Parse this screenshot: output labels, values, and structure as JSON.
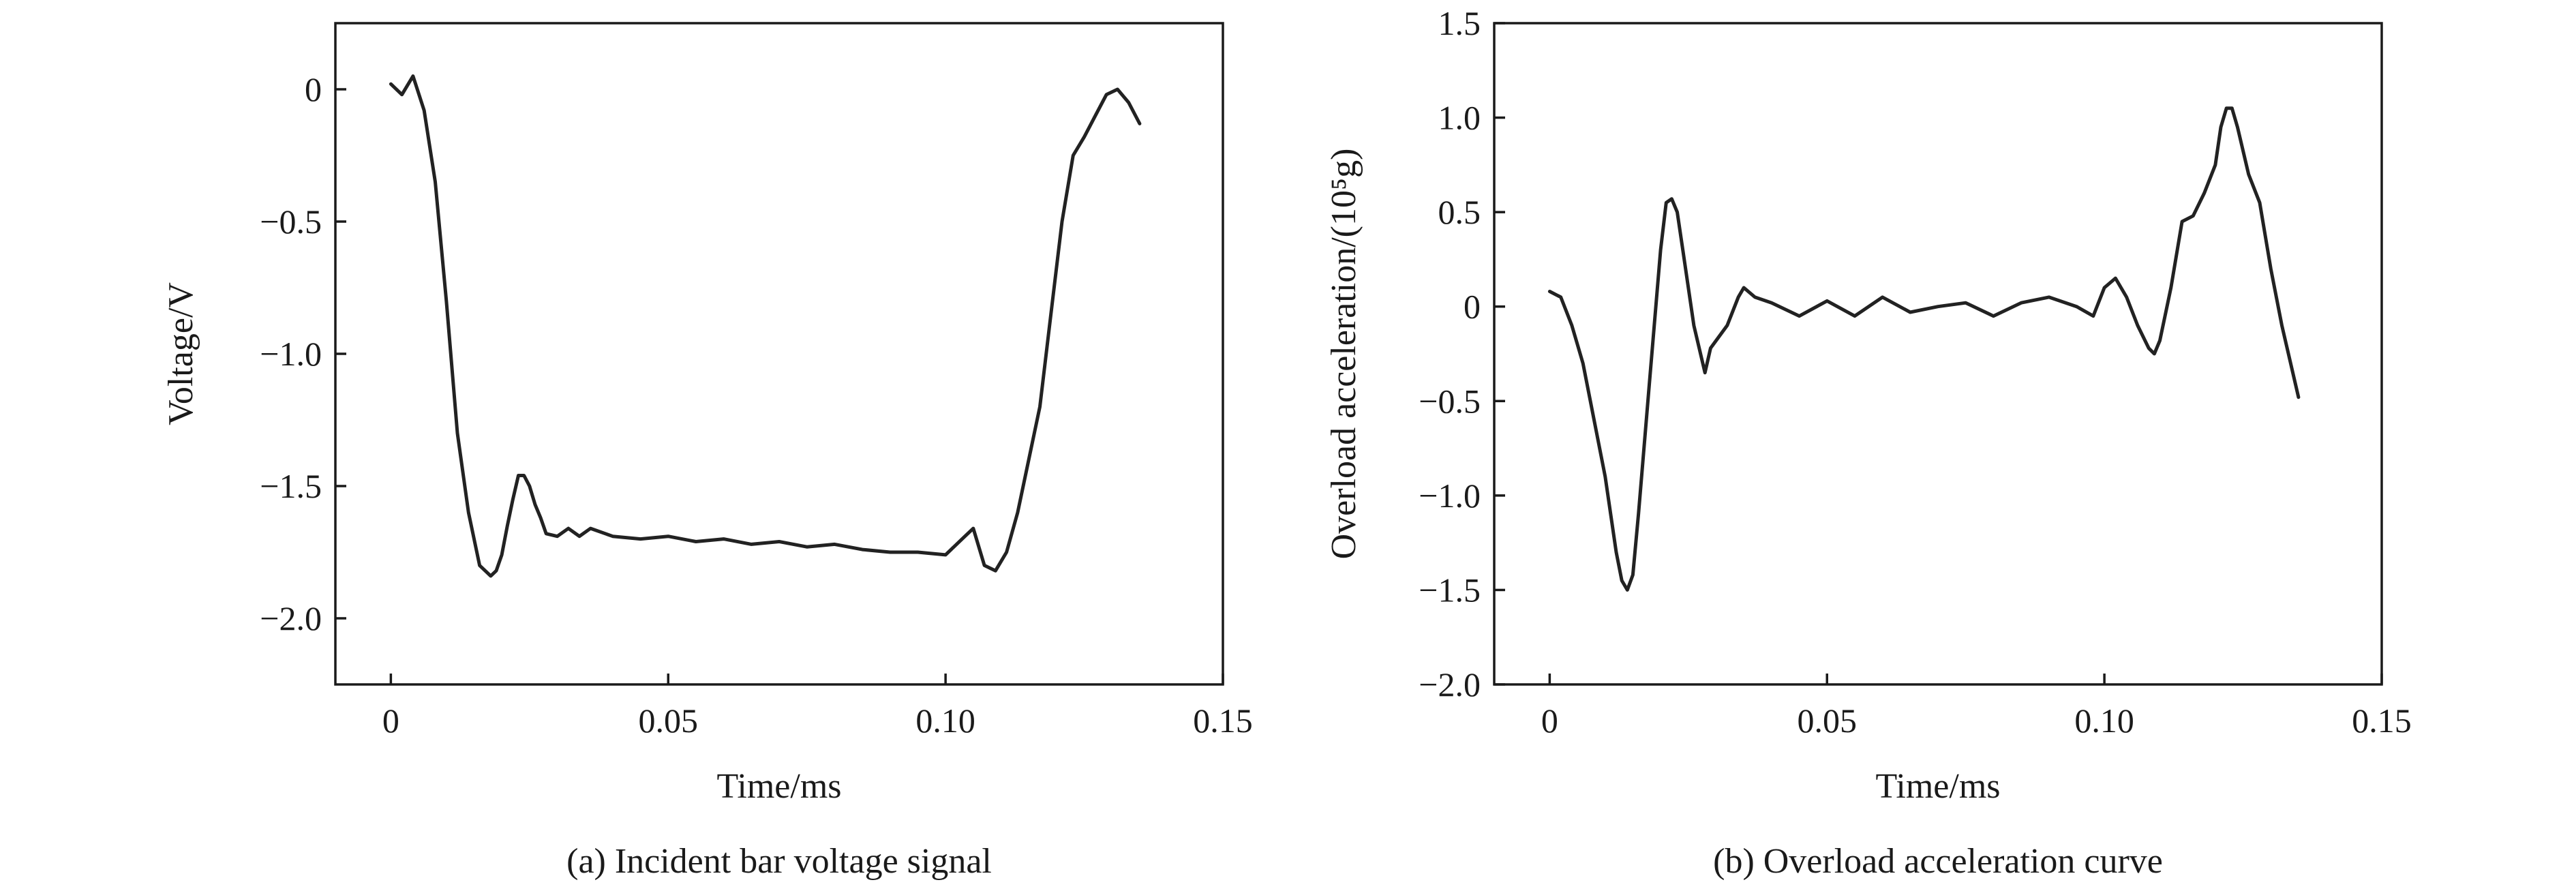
{
  "chart_data": [
    {
      "type": "line",
      "caption": "(a) Incident bar voltage signal",
      "xlabel": "Time/ms",
      "ylabel": "Voltage/V",
      "xlim": [
        -0.01,
        0.15
      ],
      "ylim": [
        -2.25,
        0.25
      ],
      "xticks": [
        0,
        0.05,
        0.1,
        0.15
      ],
      "xtick_labels": [
        "0",
        "0.05",
        "0.10",
        "0.15"
      ],
      "yticks": [
        0,
        -0.5,
        -1.0,
        -1.5,
        -2.0
      ],
      "ytick_labels": [
        "0",
        "−0.5",
        "−1.0",
        "−1.5",
        "−2.0"
      ],
      "grid": false,
      "x": [
        0,
        0.002,
        0.004,
        0.006,
        0.008,
        0.01,
        0.012,
        0.014,
        0.016,
        0.018,
        0.019,
        0.02,
        0.021,
        0.022,
        0.023,
        0.024,
        0.025,
        0.026,
        0.027,
        0.028,
        0.03,
        0.032,
        0.034,
        0.036,
        0.04,
        0.045,
        0.05,
        0.055,
        0.06,
        0.065,
        0.07,
        0.075,
        0.08,
        0.085,
        0.09,
        0.095,
        0.1,
        0.103,
        0.105,
        0.107,
        0.109,
        0.111,
        0.113,
        0.115,
        0.117,
        0.119,
        0.121,
        0.123,
        0.125,
        0.127,
        0.129,
        0.131,
        0.133,
        0.135
      ],
      "y": [
        0.02,
        -0.02,
        0.05,
        -0.08,
        -0.35,
        -0.8,
        -1.3,
        -1.6,
        -1.8,
        -1.84,
        -1.82,
        -1.76,
        -1.65,
        -1.55,
        -1.46,
        -1.46,
        -1.5,
        -1.57,
        -1.62,
        -1.68,
        -1.69,
        -1.66,
        -1.69,
        -1.66,
        -1.69,
        -1.7,
        -1.69,
        -1.71,
        -1.7,
        -1.72,
        -1.71,
        -1.73,
        -1.72,
        -1.74,
        -1.75,
        -1.75,
        -1.76,
        -1.7,
        -1.66,
        -1.8,
        -1.82,
        -1.75,
        -1.6,
        -1.4,
        -1.2,
        -0.85,
        -0.5,
        -0.25,
        -0.18,
        -0.1,
        -0.02,
        0.0,
        -0.05,
        -0.13
      ]
    },
    {
      "type": "line",
      "caption": "(b) Overload acceleration curve",
      "xlabel": "Time/ms",
      "ylabel": "Overload acceleration/(10⁵g)",
      "xlim": [
        -0.01,
        0.15
      ],
      "ylim": [
        -2.0,
        1.5
      ],
      "xticks": [
        0,
        0.05,
        0.1,
        0.15
      ],
      "xtick_labels": [
        "0",
        "0.05",
        "0.10",
        "0.15"
      ],
      "yticks": [
        1.5,
        1.0,
        0.5,
        0,
        -0.5,
        -1.0,
        -1.5,
        -2.0
      ],
      "ytick_labels": [
        "1.5",
        "1.0",
        "0.5",
        "0",
        "−0.5",
        "−1.0",
        "−1.5",
        "−2.0"
      ],
      "grid": false,
      "x": [
        0,
        0.002,
        0.004,
        0.006,
        0.008,
        0.01,
        0.012,
        0.013,
        0.014,
        0.015,
        0.016,
        0.018,
        0.02,
        0.021,
        0.022,
        0.023,
        0.024,
        0.026,
        0.028,
        0.029,
        0.03,
        0.032,
        0.034,
        0.035,
        0.037,
        0.04,
        0.045,
        0.05,
        0.055,
        0.06,
        0.065,
        0.07,
        0.075,
        0.08,
        0.085,
        0.09,
        0.095,
        0.098,
        0.1,
        0.102,
        0.104,
        0.106,
        0.108,
        0.109,
        0.11,
        0.112,
        0.114,
        0.116,
        0.118,
        0.12,
        0.121,
        0.122,
        0.123,
        0.124,
        0.126,
        0.128,
        0.13,
        0.132,
        0.135
      ],
      "y": [
        0.08,
        0.05,
        -0.1,
        -0.3,
        -0.6,
        -0.9,
        -1.3,
        -1.45,
        -1.5,
        -1.42,
        -1.1,
        -0.4,
        0.3,
        0.55,
        0.57,
        0.5,
        0.3,
        -0.1,
        -0.35,
        -0.22,
        -0.18,
        -0.1,
        0.05,
        0.1,
        0.05,
        0.02,
        -0.05,
        0.03,
        -0.05,
        0.05,
        -0.03,
        0.0,
        0.02,
        -0.05,
        0.02,
        0.05,
        0.0,
        -0.05,
        0.1,
        0.15,
        0.05,
        -0.1,
        -0.22,
        -0.25,
        -0.18,
        0.1,
        0.45,
        0.48,
        0.6,
        0.75,
        0.95,
        1.05,
        1.05,
        0.95,
        0.7,
        0.55,
        0.2,
        -0.1,
        -0.48
      ]
    }
  ]
}
